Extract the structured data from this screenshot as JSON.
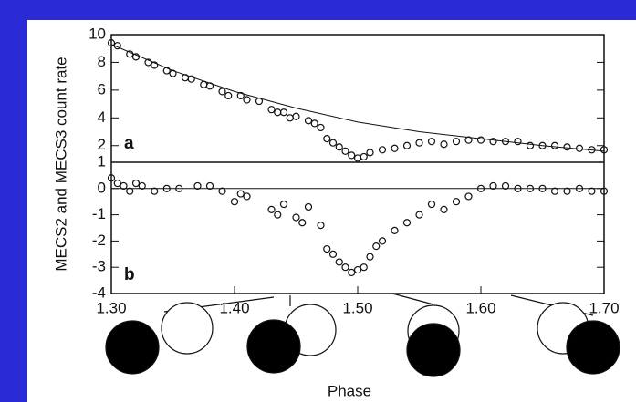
{
  "chart_data": [
    {
      "type": "scatter",
      "ylabel": "MECS2 and MECS3 count rate",
      "annotation": "a",
      "xlim": [
        1.3,
        1.7
      ],
      "ylim": [
        0.8,
        10
      ],
      "yticks": [
        2,
        4,
        6,
        8,
        10
      ],
      "series": [
        {
          "type": "scatter",
          "color": "#111111",
          "x": [
            1.3,
            1.305,
            1.315,
            1.32,
            1.33,
            1.335,
            1.345,
            1.35,
            1.36,
            1.365,
            1.375,
            1.38,
            1.39,
            1.395,
            1.405,
            1.41,
            1.42,
            1.43,
            1.435,
            1.44,
            1.445,
            1.45,
            1.46,
            1.465,
            1.47,
            1.475,
            1.48,
            1.485,
            1.49,
            1.495,
            1.5,
            1.505,
            1.51,
            1.52,
            1.53,
            1.54,
            1.55,
            1.56,
            1.57,
            1.58,
            1.59,
            1.6,
            1.61,
            1.62,
            1.63,
            1.64,
            1.65,
            1.66,
            1.67,
            1.68,
            1.69,
            1.7
          ],
          "values": [
            9.4,
            9.2,
            8.6,
            8.4,
            8.0,
            7.8,
            7.4,
            7.2,
            6.9,
            6.8,
            6.4,
            6.3,
            5.9,
            5.6,
            5.6,
            5.3,
            5.2,
            4.6,
            4.4,
            4.4,
            4.0,
            4.1,
            3.8,
            3.6,
            3.3,
            2.5,
            2.2,
            1.9,
            1.6,
            1.3,
            1.1,
            1.2,
            1.5,
            1.7,
            1.8,
            2.0,
            2.2,
            2.3,
            2.1,
            2.3,
            2.4,
            2.4,
            2.3,
            2.3,
            2.3,
            2.0,
            2.0,
            2.0,
            1.9,
            1.8,
            1.7,
            1.7
          ]
        },
        {
          "type": "line",
          "color": "#111111",
          "x": [
            1.3,
            1.35,
            1.4,
            1.45,
            1.5,
            1.55,
            1.6,
            1.65,
            1.7
          ],
          "values": [
            9.3,
            7.4,
            5.9,
            4.7,
            3.7,
            3.0,
            2.5,
            2.0,
            1.6
          ]
        }
      ]
    },
    {
      "type": "scatter",
      "xlabel": "Phase",
      "annotation": "b",
      "xlim": [
        1.3,
        1.7
      ],
      "ylim": [
        -4,
        1
      ],
      "yticks": [
        -4,
        -3,
        -2,
        -1,
        0,
        1
      ],
      "xticks": [
        {
          "value": 1.3,
          "label": "1.30"
        },
        {
          "value": 1.4,
          "label": "1.40"
        },
        {
          "value": 1.5,
          "label": "1.50"
        },
        {
          "value": 1.6,
          "label": "1.60"
        },
        {
          "value": 1.7,
          "label": "1.70"
        }
      ],
      "series": [
        {
          "type": "scatter",
          "color": "#111111",
          "x": [
            1.3,
            1.305,
            1.31,
            1.315,
            1.32,
            1.325,
            1.335,
            1.345,
            1.355,
            1.37,
            1.38,
            1.39,
            1.4,
            1.405,
            1.41,
            1.43,
            1.435,
            1.44,
            1.45,
            1.455,
            1.46,
            1.47,
            1.475,
            1.48,
            1.485,
            1.49,
            1.495,
            1.5,
            1.505,
            1.51,
            1.515,
            1.52,
            1.53,
            1.54,
            1.55,
            1.56,
            1.57,
            1.58,
            1.59,
            1.6,
            1.61,
            1.62,
            1.63,
            1.64,
            1.65,
            1.66,
            1.67,
            1.68,
            1.69,
            1.7
          ],
          "values": [
            0.4,
            0.2,
            0.1,
            -0.1,
            0.2,
            0.1,
            -0.1,
            0,
            0,
            0.1,
            0.1,
            -0.1,
            -0.5,
            -0.2,
            -0.3,
            -0.8,
            -1.0,
            -0.6,
            -1.1,
            -1.3,
            -0.7,
            -1.4,
            -2.3,
            -2.5,
            -2.8,
            -3.0,
            -3.2,
            -3.1,
            -3.0,
            -2.6,
            -2.2,
            -2.0,
            -1.6,
            -1.3,
            -1.0,
            -0.6,
            -0.8,
            -0.5,
            -0.3,
            0,
            0.1,
            0.1,
            0,
            0,
            0,
            -0.1,
            -0.1,
            0,
            -0.1,
            -0.1
          ]
        },
        {
          "type": "line",
          "color": "#111111",
          "x": [
            1.3,
            1.7
          ],
          "values": [
            0,
            0
          ]
        }
      ]
    }
  ]
}
